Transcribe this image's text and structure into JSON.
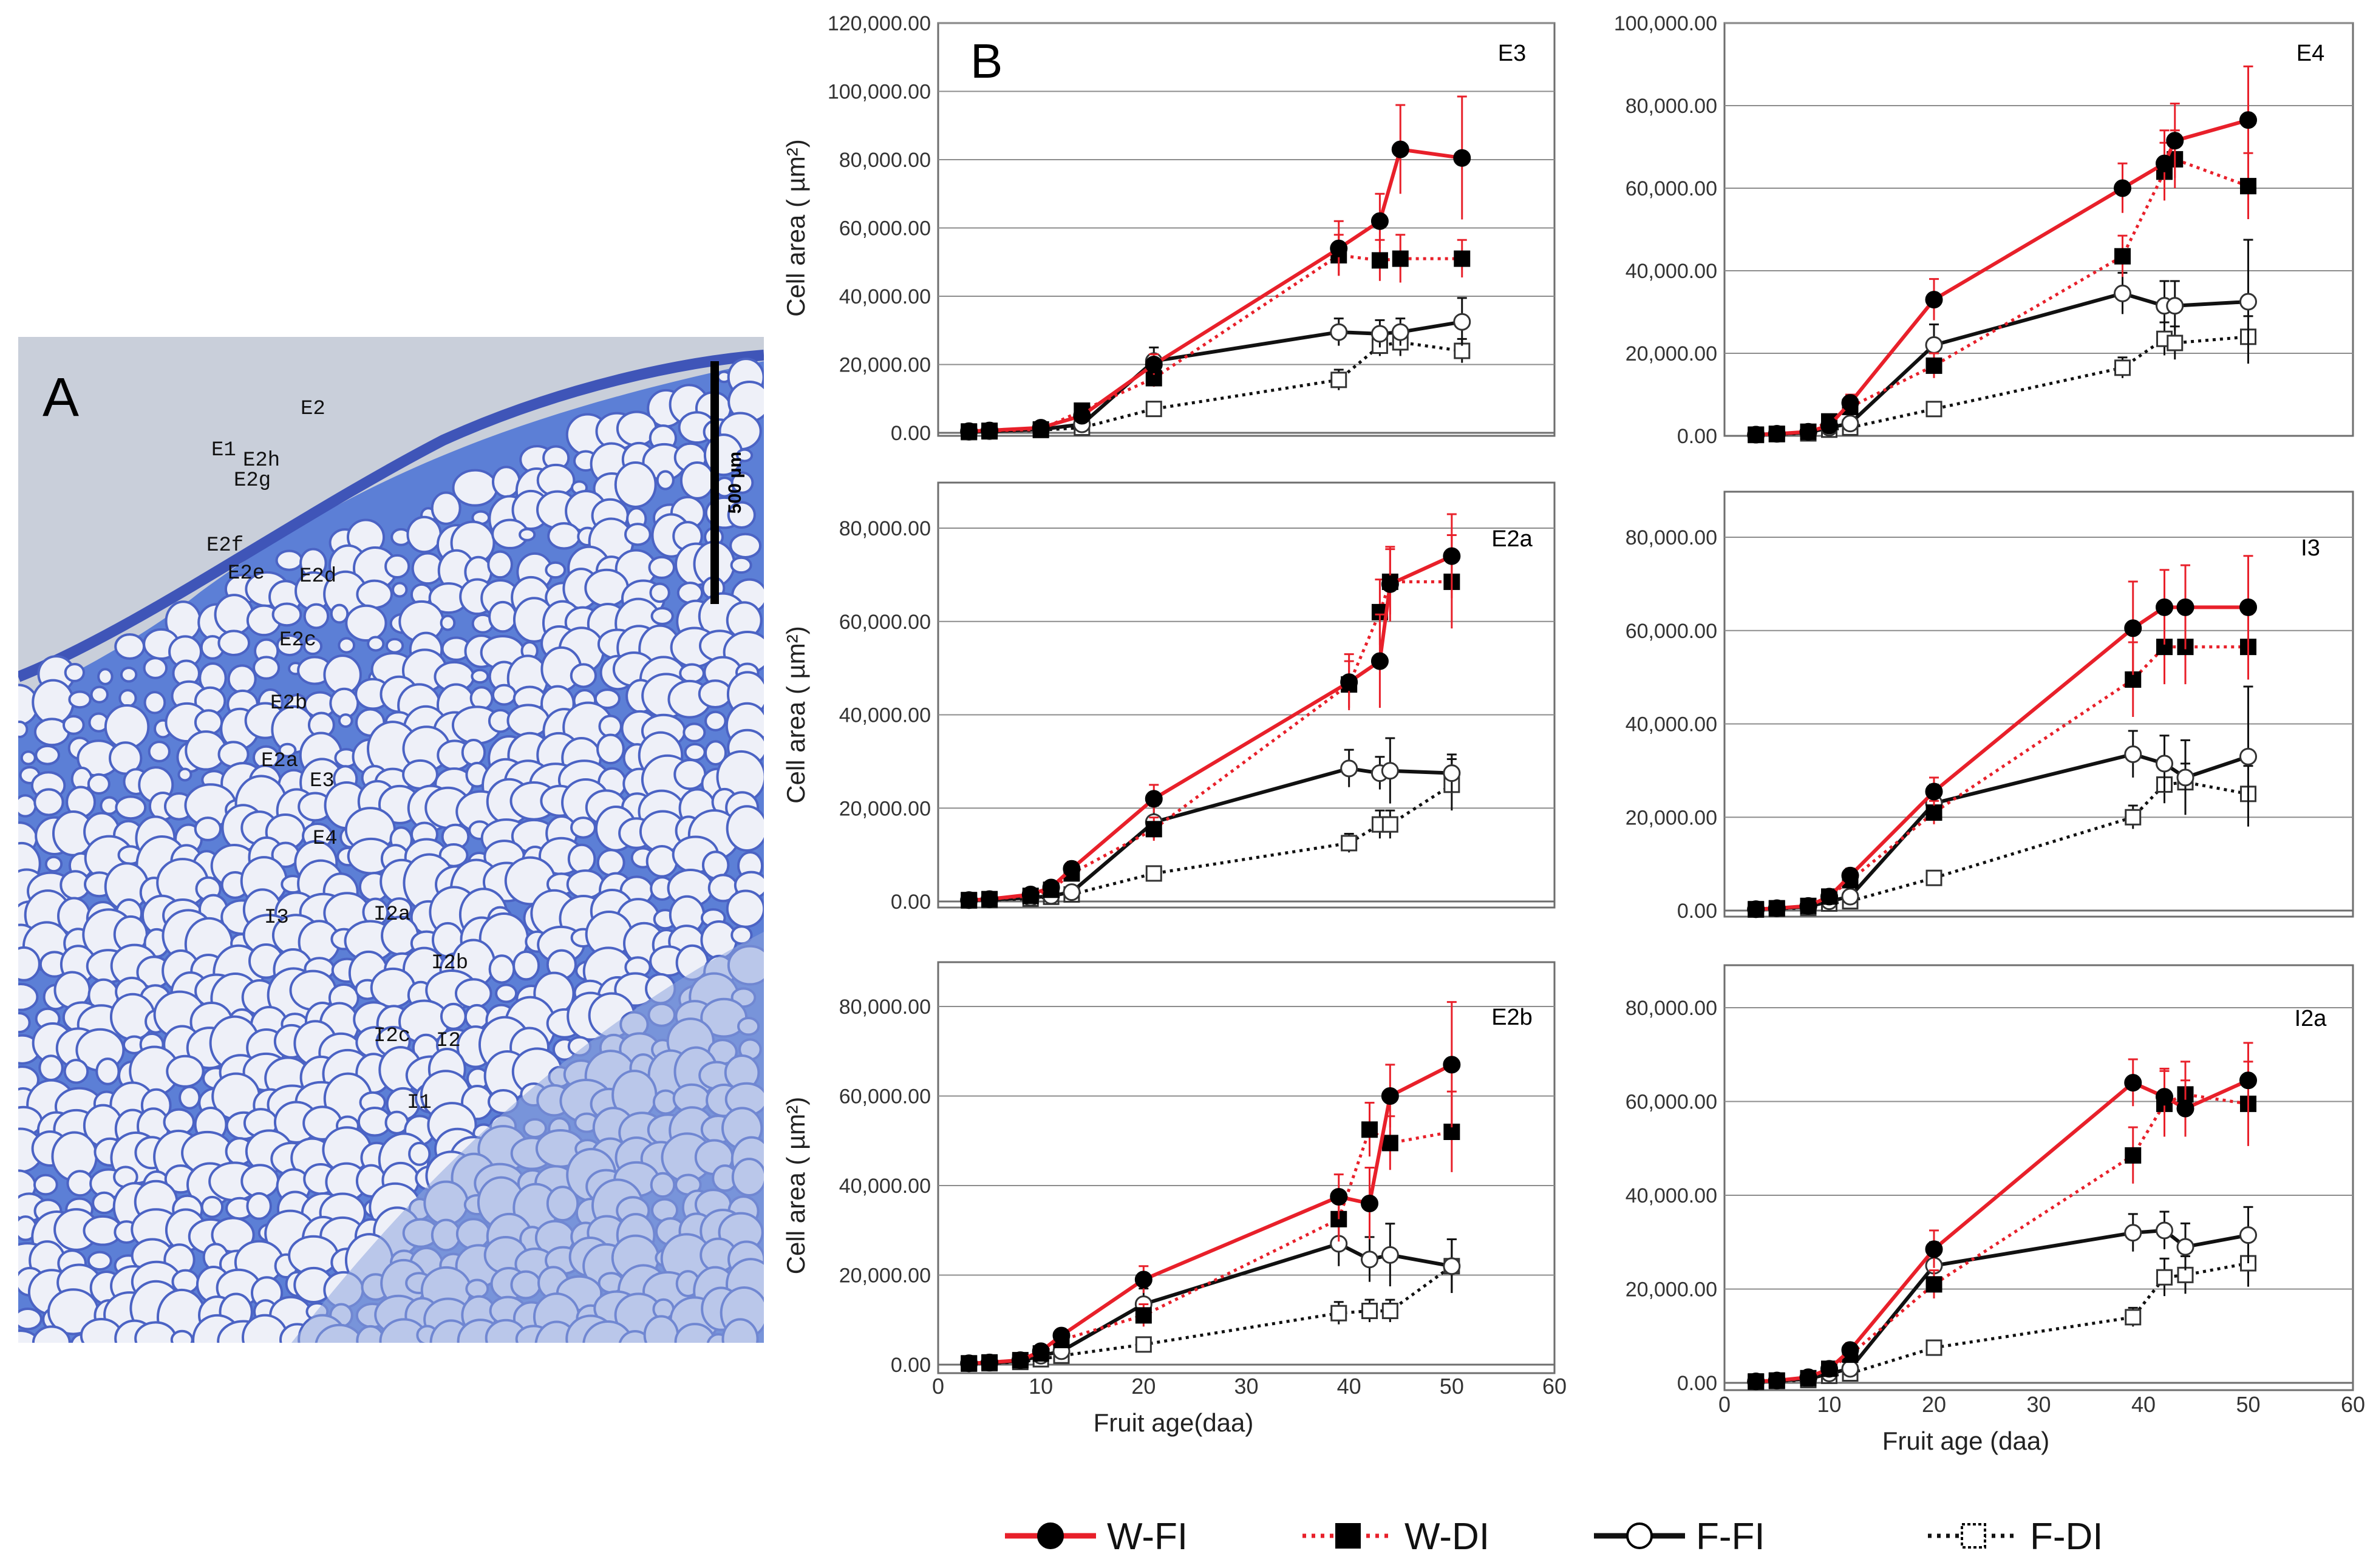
{
  "panel_a": {
    "label": "A",
    "scale_bar": "500 µm",
    "tissue_labels": [
      "E2",
      "E1",
      "E2h",
      "E2g",
      "E2f",
      "E2e",
      "E2d",
      "E2c",
      "E2b",
      "E2a",
      "E3",
      "E4",
      "I3",
      "I2a",
      "I2b",
      "I2c",
      "I2",
      "I1"
    ]
  },
  "panel_b_label": "B",
  "legend": [
    {
      "name": "W-FI",
      "color": "#e8202a",
      "dash": "solid",
      "marker": "circle",
      "fill": "filled"
    },
    {
      "name": "W-DI",
      "color": "#e8202a",
      "dash": "dotted",
      "marker": "square",
      "fill": "filled"
    },
    {
      "name": "F-FI",
      "color": "#111111",
      "dash": "solid",
      "marker": "circle",
      "fill": "open"
    },
    {
      "name": "F-DI",
      "color": "#111111",
      "dash": "dotted",
      "marker": "square",
      "fill": "open"
    }
  ],
  "chart_data": [
    {
      "type": "line",
      "title": "E3",
      "ylabel": "Cell area ( µm²)",
      "xlabel": "",
      "ylim": [
        0,
        120000
      ],
      "yticks": [
        "0.00",
        "20,000.00",
        "40,000.00",
        "60,000.00",
        "80,000.00",
        "100,000.00",
        "120,000.00"
      ],
      "xlim": [
        0,
        60
      ],
      "xticks": [],
      "grid": true,
      "series": [
        {
          "name": "W-FI",
          "x": [
            3,
            5,
            10,
            14,
            21,
            39,
            43,
            45,
            51
          ],
          "y": [
            500,
            700,
            1500,
            5000,
            20000,
            54000,
            62000,
            83000,
            80500
          ],
          "err": [
            300,
            300,
            500,
            1500,
            3000,
            8000,
            8000,
            13000,
            18000
          ]
        },
        {
          "name": "W-DI",
          "x": [
            3,
            5,
            10,
            14,
            21,
            39,
            43,
            45,
            51
          ],
          "y": [
            400,
            600,
            1000,
            6500,
            16000,
            52000,
            50500,
            51000,
            51000
          ],
          "err": [
            300,
            300,
            500,
            1500,
            2500,
            6000,
            6000,
            7000,
            5500
          ]
        },
        {
          "name": "F-FI",
          "x": [
            3,
            5,
            10,
            14,
            21,
            39,
            43,
            45,
            51
          ],
          "y": [
            300,
            500,
            1000,
            2500,
            21000,
            29500,
            29000,
            29500,
            32500
          ],
          "err": [
            200,
            300,
            500,
            800,
            4000,
            4000,
            4000,
            4000,
            7000
          ]
        },
        {
          "name": "F-DI",
          "x": [
            3,
            5,
            10,
            14,
            21,
            39,
            43,
            45,
            51
          ],
          "y": [
            200,
            400,
            800,
            1500,
            7000,
            15500,
            25500,
            26500,
            24000
          ],
          "err": [
            200,
            200,
            400,
            600,
            1500,
            3000,
            3000,
            4000,
            3500
          ]
        }
      ]
    },
    {
      "type": "line",
      "title": "E4",
      "ylabel": "",
      "xlabel": "",
      "ylim": [
        0,
        100000
      ],
      "yticks": [
        "0.00",
        "20,000.00",
        "40,000.00",
        "60,000.00",
        "80,000.00",
        "100,000.00"
      ],
      "xlim": [
        0,
        60
      ],
      "xticks": [],
      "grid": true,
      "series": [
        {
          "name": "W-FI",
          "x": [
            3,
            5,
            8,
            10,
            12,
            20,
            38,
            42,
            43,
            50
          ],
          "y": [
            300,
            500,
            1000,
            2500,
            8000,
            33000,
            60000,
            66000,
            71500,
            76500
          ],
          "err": [
            200,
            300,
            500,
            700,
            2000,
            5000,
            6000,
            8000,
            9000,
            13000
          ]
        },
        {
          "name": "W-DI",
          "x": [
            3,
            5,
            8,
            10,
            12,
            20,
            38,
            42,
            43,
            50
          ],
          "y": [
            300,
            500,
            1000,
            3500,
            7000,
            17000,
            43500,
            64000,
            67000,
            60500
          ],
          "err": [
            200,
            300,
            500,
            700,
            2000,
            3000,
            5000,
            7000,
            7000,
            8000
          ]
        },
        {
          "name": "F-FI",
          "x": [
            3,
            5,
            8,
            10,
            12,
            20,
            38,
            42,
            43,
            50
          ],
          "y": [
            300,
            500,
            800,
            2000,
            3000,
            22000,
            34500,
            31500,
            31500,
            32500
          ],
          "err": [
            200,
            300,
            400,
            600,
            800,
            5000,
            5000,
            6000,
            6000,
            15000
          ]
        },
        {
          "name": "F-DI",
          "x": [
            3,
            5,
            8,
            10,
            12,
            20,
            38,
            42,
            43,
            50
          ],
          "y": [
            200,
            400,
            600,
            1500,
            2000,
            6500,
            16500,
            23500,
            22500,
            24000
          ],
          "err": [
            200,
            200,
            300,
            500,
            600,
            1500,
            2500,
            4000,
            4000,
            5000
          ]
        }
      ]
    },
    {
      "type": "line",
      "title": "E2a",
      "ylabel": "Cell area ( µm²)",
      "xlabel": "",
      "ylim": [
        0,
        80000
      ],
      "yticks": [
        "0.00",
        "20,000.00",
        "40,000.00",
        "60,000.00",
        "80,000.00"
      ],
      "xlim": [
        0,
        60
      ],
      "xticks": [],
      "grid": true,
      "series": [
        {
          "name": "W-FI",
          "x": [
            3,
            5,
            9,
            11,
            13,
            21,
            40,
            43,
            44,
            50
          ],
          "y": [
            300,
            500,
            1500,
            3000,
            7000,
            22000,
            47000,
            51500,
            68000,
            74000
          ],
          "err": [
            200,
            300,
            500,
            800,
            1500,
            3000,
            6000,
            10000,
            8000,
            9000
          ]
        },
        {
          "name": "W-DI",
          "x": [
            3,
            5,
            9,
            11,
            13,
            21,
            40,
            43,
            44,
            50
          ],
          "y": [
            300,
            500,
            1200,
            2500,
            6000,
            15500,
            46500,
            62000,
            68500,
            68500
          ],
          "err": [
            200,
            300,
            500,
            800,
            1500,
            2500,
            5000,
            7000,
            7000,
            10000
          ]
        },
        {
          "name": "F-FI",
          "x": [
            3,
            5,
            9,
            11,
            13,
            21,
            40,
            43,
            44,
            50
          ],
          "y": [
            300,
            400,
            800,
            1200,
            2000,
            17000,
            28500,
            27500,
            28000,
            27500
          ],
          "err": [
            200,
            300,
            400,
            500,
            800,
            3500,
            4000,
            3500,
            7000,
            4000
          ]
        },
        {
          "name": "F-DI",
          "x": [
            3,
            5,
            9,
            11,
            13,
            21,
            40,
            43,
            44,
            50
          ],
          "y": [
            200,
            300,
            600,
            1000,
            1500,
            6000,
            12500,
            16500,
            16500,
            25000
          ],
          "err": [
            200,
            200,
            300,
            400,
            500,
            1500,
            2000,
            3000,
            3000,
            5500
          ]
        }
      ]
    },
    {
      "type": "line",
      "title": "I3",
      "ylabel": "",
      "xlabel": "",
      "ylim": [
        0,
        80000
      ],
      "yticks": [
        "0.00",
        "20,000.00",
        "40,000.00",
        "60,000.00",
        "80,000.00"
      ],
      "xlim": [
        0,
        60
      ],
      "xticks": [],
      "grid": true,
      "series": [
        {
          "name": "W-FI",
          "x": [
            3,
            5,
            8,
            10,
            12,
            20,
            39,
            42,
            44,
            50
          ],
          "y": [
            300,
            500,
            1000,
            3000,
            7500,
            25500,
            60500,
            65000,
            65000,
            65000
          ],
          "err": [
            200,
            300,
            500,
            800,
            1500,
            3000,
            10000,
            8000,
            9000,
            11000
          ]
        },
        {
          "name": "W-DI",
          "x": [
            3,
            5,
            8,
            10,
            12,
            20,
            39,
            42,
            44,
            50
          ],
          "y": [
            300,
            500,
            1000,
            3000,
            6500,
            21000,
            49500,
            56500,
            56500,
            56500
          ],
          "err": [
            200,
            300,
            500,
            800,
            1500,
            2500,
            8000,
            8000,
            8000,
            7000
          ]
        },
        {
          "name": "F-FI",
          "x": [
            3,
            5,
            8,
            10,
            12,
            20,
            39,
            42,
            44,
            50
          ],
          "y": [
            300,
            500,
            800,
            2000,
            3000,
            23000,
            33500,
            31500,
            28500,
            33000
          ],
          "err": [
            200,
            300,
            400,
            600,
            800,
            4000,
            5000,
            6000,
            8000,
            15000
          ]
        },
        {
          "name": "F-DI",
          "x": [
            3,
            5,
            8,
            10,
            12,
            20,
            39,
            42,
            44,
            50
          ],
          "y": [
            200,
            400,
            600,
            1500,
            2000,
            7000,
            20000,
            27000,
            27500,
            25000
          ],
          "err": [
            200,
            200,
            300,
            500,
            600,
            1500,
            2500,
            4000,
            4000,
            6000
          ]
        }
      ]
    },
    {
      "type": "line",
      "title": "E2b",
      "ylabel": "Cell area ( µm²)",
      "xlabel": "Fruit age(daa)",
      "ylim": [
        0,
        80000
      ],
      "yticks": [
        "0.00",
        "20,000.00",
        "40,000.00",
        "60,000.00",
        "80,000.00"
      ],
      "xlim": [
        0,
        60
      ],
      "xticks": [
        "0",
        "10",
        "20",
        "30",
        "40",
        "50",
        "60"
      ],
      "grid": true,
      "series": [
        {
          "name": "W-FI",
          "x": [
            3,
            5,
            8,
            10,
            12,
            20,
            39,
            42,
            44,
            50
          ],
          "y": [
            300,
            500,
            1000,
            3000,
            6500,
            19000,
            37500,
            36000,
            60000,
            67000
          ],
          "err": [
            200,
            300,
            500,
            800,
            1500,
            3000,
            5000,
            8000,
            7000,
            14000
          ]
        },
        {
          "name": "W-DI",
          "x": [
            3,
            5,
            8,
            10,
            12,
            20,
            39,
            42,
            44,
            50
          ],
          "y": [
            300,
            500,
            1000,
            2500,
            5500,
            11000,
            32500,
            52500,
            49500,
            52000
          ],
          "err": [
            200,
            300,
            500,
            800,
            1500,
            2500,
            5000,
            6000,
            6000,
            9000
          ]
        },
        {
          "name": "F-FI",
          "x": [
            3,
            5,
            8,
            10,
            12,
            20,
            39,
            42,
            44,
            50
          ],
          "y": [
            300,
            400,
            800,
            2000,
            3000,
            13500,
            27000,
            23500,
            24500,
            22000
          ],
          "err": [
            200,
            300,
            400,
            600,
            800,
            3500,
            5000,
            5000,
            7000,
            6000
          ]
        },
        {
          "name": "F-DI",
          "x": [
            3,
            5,
            8,
            10,
            12,
            20,
            39,
            42,
            44,
            50
          ],
          "y": [
            200,
            300,
            600,
            1200,
            2000,
            4500,
            11500,
            12000,
            12000,
            22000
          ],
          "err": [
            200,
            200,
            300,
            400,
            600,
            1200,
            2500,
            2500,
            2500,
            6000
          ]
        }
      ]
    },
    {
      "type": "line",
      "title": "I2a",
      "ylabel": "",
      "xlabel": "Fruit age (daa)",
      "ylim": [
        0,
        80000
      ],
      "yticks": [
        "0.00",
        "20,000.00",
        "40,000.00",
        "60,000.00",
        "80,000.00"
      ],
      "xlim": [
        0,
        60
      ],
      "xticks": [
        "0",
        "10",
        "20",
        "30",
        "40",
        "50",
        "60"
      ],
      "grid": true,
      "series": [
        {
          "name": "W-FI",
          "x": [
            3,
            5,
            8,
            10,
            12,
            20,
            39,
            42,
            44,
            50
          ],
          "y": [
            300,
            500,
            1200,
            3000,
            7000,
            28500,
            64000,
            61000,
            58500,
            64500
          ],
          "err": [
            200,
            300,
            500,
            800,
            1500,
            4000,
            5000,
            6000,
            6000,
            8000
          ]
        },
        {
          "name": "W-DI",
          "x": [
            3,
            5,
            8,
            10,
            12,
            20,
            39,
            42,
            44,
            50
          ],
          "y": [
            300,
            500,
            1000,
            3000,
            6000,
            21000,
            48500,
            59500,
            61500,
            59500
          ],
          "err": [
            200,
            300,
            500,
            800,
            1500,
            3000,
            6000,
            7000,
            7000,
            9000
          ]
        },
        {
          "name": "F-FI",
          "x": [
            3,
            5,
            8,
            10,
            12,
            20,
            39,
            42,
            44,
            50
          ],
          "y": [
            300,
            500,
            800,
            2000,
            3000,
            25000,
            32000,
            32500,
            29000,
            31500
          ],
          "err": [
            200,
            300,
            400,
            600,
            800,
            5000,
            4000,
            4000,
            5000,
            6000
          ]
        },
        {
          "name": "F-DI",
          "x": [
            3,
            5,
            8,
            10,
            12,
            20,
            39,
            42,
            44,
            50
          ],
          "y": [
            200,
            400,
            600,
            1500,
            2000,
            7500,
            14000,
            22500,
            23000,
            25500
          ],
          "err": [
            200,
            200,
            300,
            500,
            600,
            1500,
            2000,
            4000,
            4000,
            5000
          ]
        }
      ]
    }
  ]
}
